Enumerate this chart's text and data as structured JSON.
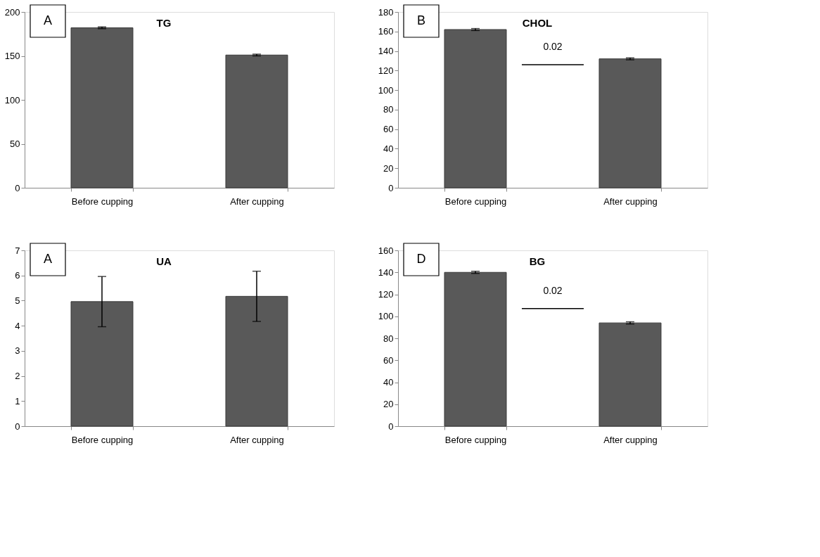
{
  "chart_data": [
    {
      "type": "bar",
      "title": "TG",
      "categories": [
        "Before cupping",
        "After cupping"
      ],
      "values": [
        182,
        151
      ],
      "errors": [
        1,
        1
      ],
      "color": "#595959",
      "ylim": [
        0,
        200
      ],
      "yticks": [
        0,
        50,
        100,
        150,
        200
      ],
      "grid": false,
      "legend": false,
      "annotations": [
        "A"
      ]
    },
    {
      "type": "bar",
      "title": "CHOL",
      "categories": [
        "Before cupping",
        "After cupping"
      ],
      "values": [
        162,
        132
      ],
      "errors": [
        1,
        1
      ],
      "color": "#595959",
      "ylim": [
        0,
        180
      ],
      "yticks": [
        0,
        20,
        40,
        60,
        80,
        100,
        120,
        140,
        160,
        180
      ],
      "grid": false,
      "legend": false,
      "annotations": [
        "B",
        "0.02"
      ],
      "ref_lines": [
        {
          "axis": "y",
          "value": 126,
          "color": "#000000"
        }
      ]
    },
    {
      "type": "bar",
      "title": "UA",
      "categories": [
        "Before cupping",
        "After cupping"
      ],
      "values": [
        4.96,
        5.17
      ],
      "errors": [
        1,
        1
      ],
      "color": "#595959",
      "ylim": [
        0,
        7
      ],
      "yticks": [
        0,
        1,
        2,
        3,
        4,
        5,
        6,
        7
      ],
      "grid": false,
      "legend": false,
      "annotations": [
        "A"
      ]
    },
    {
      "type": "bar",
      "title": "BG",
      "categories": [
        "Before cupping",
        "After cupping"
      ],
      "values": [
        140,
        94
      ],
      "errors": [
        1,
        1
      ],
      "color": "#595959",
      "ylim": [
        0,
        160
      ],
      "yticks": [
        0,
        20,
        40,
        60,
        80,
        100,
        120,
        140,
        160
      ],
      "grid": false,
      "legend": false,
      "annotations": [
        "D",
        "0.02"
      ],
      "ref_lines": [
        {
          "axis": "y",
          "value": 107,
          "color": "#000000"
        }
      ]
    }
  ]
}
